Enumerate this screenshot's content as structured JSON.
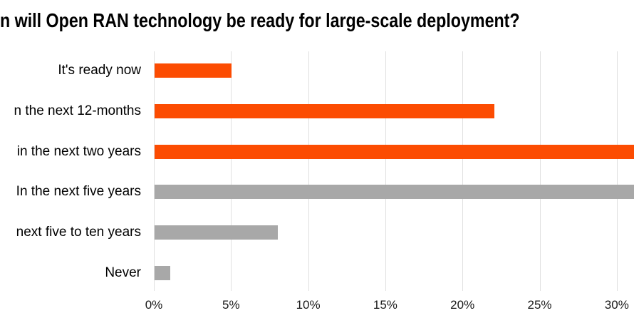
{
  "colors": {
    "background": "#FFFFFF",
    "bar_orange": "#FC4C02",
    "bar_gray": "#A8A8A8",
    "gridline": "#E0E0E0",
    "title_text": "#000000",
    "category_text": "#000000",
    "tick_text": "#1A1A1A"
  },
  "chart_data": {
    "type": "bar",
    "orientation": "horizontal",
    "title": "n will Open RAN technology be ready for large-scale deployment?",
    "xlabel": "",
    "ylabel": "",
    "legend": "none",
    "grid": "vertical-only",
    "xlim": [
      0,
      31.1
    ],
    "categories": [
      "It's ready now",
      "n the next 12-months",
      "in the next two years",
      "In the next five years",
      "next five to ten years",
      "Never"
    ],
    "values": [
      5,
      22,
      31.1,
      31.1,
      8,
      1
    ],
    "clipped_at_right_edge": [
      false,
      false,
      true,
      true,
      false,
      false
    ],
    "bar_colors": [
      "#FC4C02",
      "#FC4C02",
      "#FC4C02",
      "#A8A8A8",
      "#A8A8A8",
      "#A8A8A8"
    ],
    "x_ticks": [
      {
        "label": "0%",
        "value": 0
      },
      {
        "label": "5%",
        "value": 5
      },
      {
        "label": "10%",
        "value": 10
      },
      {
        "label": "15%",
        "value": 15
      },
      {
        "label": "20%",
        "value": 20
      },
      {
        "label": "25%",
        "value": 25
      },
      {
        "label": "30%",
        "value": 30
      }
    ]
  }
}
